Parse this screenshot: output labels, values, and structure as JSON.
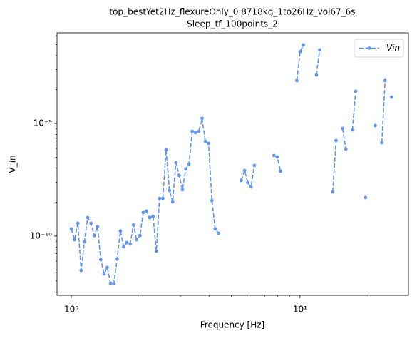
{
  "chart_data": {
    "type": "line",
    "title": [
      "top_bestYet2Hz_flexureOnly_0.8718kg_1to26Hz_vol67_6s",
      "Sleep_tf_100points_2"
    ],
    "xlabel": "Frequency [Hz]",
    "ylabel": "V_in",
    "xscale": "log",
    "yscale": "log",
    "xlim": [
      0.866,
      29.8
    ],
    "ylim": [
      2.98e-11,
      6.37e-09
    ],
    "xticks": [
      {
        "value": 1,
        "label": "10⁰"
      },
      {
        "value": 10,
        "label": "10¹"
      }
    ],
    "yticks": [
      {
        "value": 1e-10,
        "label": "10⁻¹⁰"
      },
      {
        "value": 1e-09,
        "label": "10⁻⁹"
      }
    ],
    "legend": "upper right",
    "x": [
      1.0,
      1.033,
      1.068,
      1.104,
      1.141,
      1.179,
      1.219,
      1.259,
      1.302,
      1.345,
      1.39,
      1.436,
      1.484,
      1.534,
      1.586,
      1.639,
      1.693,
      1.75,
      1.809,
      1.869,
      1.931,
      1.996,
      2.063,
      2.132,
      2.203,
      2.277,
      2.353,
      2.432,
      2.513,
      2.597,
      2.686,
      2.774,
      2.867,
      2.963,
      3.062,
      3.166,
      3.27,
      3.379,
      3.492,
      3.609,
      3.731,
      3.856,
      3.985,
      4.118,
      4.255,
      4.398,
      4.545,
      5.536,
      5.722,
      5.913,
      6.111,
      6.315,
      6.526,
      7.693,
      7.951,
      8.217,
      8.492,
      9.687,
      10.012,
      10.346,
      10.69,
      11.8,
      12.19,
      12.6,
      13.91,
      14.38,
      14.86,
      15.36,
      15.87,
      16.4,
      16.95,
      17.52,
      18.11,
      19.34,
      19.99,
      21.34,
      22.06,
      22.8,
      23.56,
      24.35,
      25.16
    ],
    "series": [
      {
        "name": "Vin",
        "color": "#6495ed",
        "values": [
          1.16e-10,
          9.29e-11,
          1.3e-10,
          4.97e-11,
          8.89e-11,
          1.46e-10,
          1.3e-10,
          1.01e-10,
          1.21e-10,
          6.18e-11,
          4.62e-11,
          5.27e-11,
          3.82e-11,
          3.77e-11,
          6.27e-11,
          1.11e-10,
          8.04e-11,
          8.77e-11,
          8.51e-11,
          1.26e-10,
          9.29e-11,
          1.01e-10,
          1.62e-10,
          1.67e-10,
          1.46e-10,
          1.5e-10,
          7.36e-11,
          2.16e-10,
          2.16e-10,
          5.83e-10,
          2.54e-10,
          2.01e-10,
          4.49e-10,
          3.45e-10,
          2.58e-10,
          3.94e-10,
          4.36e-10,
          8.51e-10,
          8.28e-10,
          8.51e-10,
          1.11e-09,
          6.95e-10,
          6.65e-10,
          2.07e-10,
          1.16e-10,
          1.06e-10,
          null,
          3.12e-10,
          3.82e-10,
          2.98e-10,
          2.73e-10,
          4.24e-10,
          null,
          5.19e-10,
          5.04e-10,
          3.77e-10,
          null,
          2.4e-09,
          4.35e-09,
          4.97e-09,
          null,
          2.69e-09,
          4.49e-09,
          null,
          2.47e-10,
          7.05e-10,
          null,
          9.03e-10,
          5.92e-10,
          null,
          8.77e-10,
          1.93e-09,
          null,
          2.2e-10,
          null,
          9.57e-10,
          null,
          6.75e-10,
          2.4e-09,
          null,
          1.71e-09
        ]
      }
    ]
  }
}
